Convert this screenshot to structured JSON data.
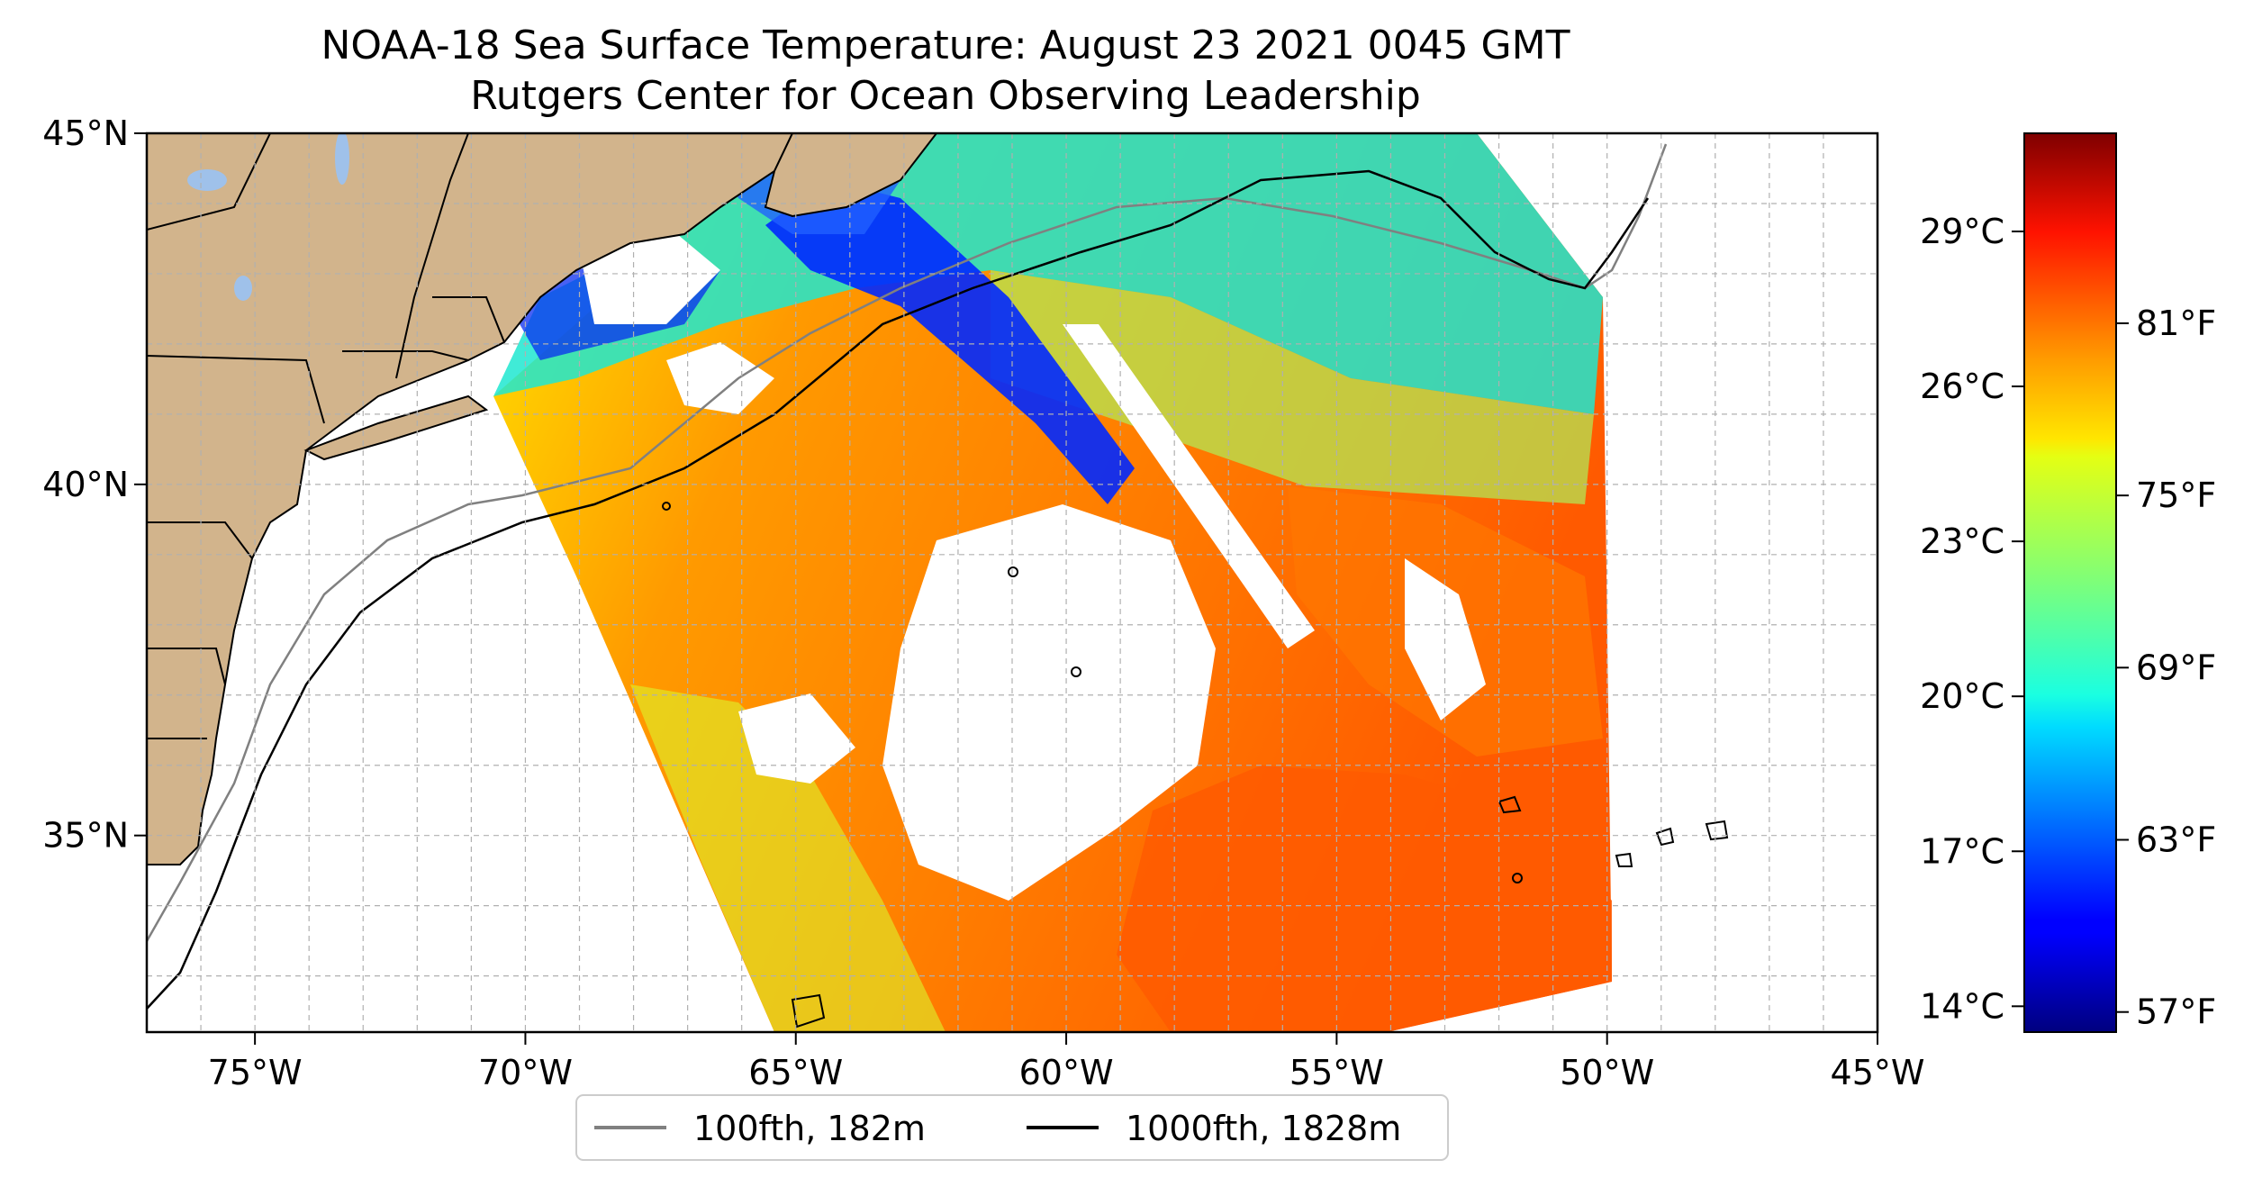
{
  "title": "NOAA-18 Sea Surface Temperature: August 23 2021 0045 GMT",
  "subtitle": "Rutgers Center for Ocean Observing Leadership",
  "map": {
    "lon_range": [
      -77,
      -45
    ],
    "lat_range": [
      32.2,
      45
    ],
    "x_ticks": [
      {
        "value": -75,
        "label": "75°W"
      },
      {
        "value": -70,
        "label": "70°W"
      },
      {
        "value": -65,
        "label": "65°W"
      },
      {
        "value": -60,
        "label": "60°W"
      },
      {
        "value": -55,
        "label": "55°W"
      },
      {
        "value": -50,
        "label": "50°W"
      },
      {
        "value": -45,
        "label": "45°W"
      }
    ],
    "y_ticks": [
      {
        "value": 45,
        "label": "45°N"
      },
      {
        "value": 40,
        "label": "40°N"
      },
      {
        "value": 35,
        "label": "35°N"
      }
    ],
    "grid": true,
    "land_color": "#d2b48c",
    "lake_color": "#9fc1ea",
    "legend": {
      "placement": "bottom-center",
      "entries": [
        {
          "label": "100fth, 182m",
          "color": "#808080"
        },
        {
          "label": "1000fth, 1828m",
          "color": "#000000"
        }
      ]
    }
  },
  "colorbar": {
    "colormap": "jet",
    "celsius_range": [
      13.5,
      30.9
    ],
    "celsius_ticks": [
      {
        "value": 14,
        "label": "14°C"
      },
      {
        "value": 17,
        "label": "17°C"
      },
      {
        "value": 20,
        "label": "20°C"
      },
      {
        "value": 23,
        "label": "23°C"
      },
      {
        "value": 26,
        "label": "26°C"
      },
      {
        "value": 29,
        "label": "29°C"
      }
    ],
    "fahrenheit_ticks": [
      {
        "value": 57,
        "label": "57°F"
      },
      {
        "value": 63,
        "label": "63°F"
      },
      {
        "value": 69,
        "label": "69°F"
      },
      {
        "value": 75,
        "label": "75°F"
      },
      {
        "value": 81,
        "label": "81°F"
      }
    ]
  }
}
